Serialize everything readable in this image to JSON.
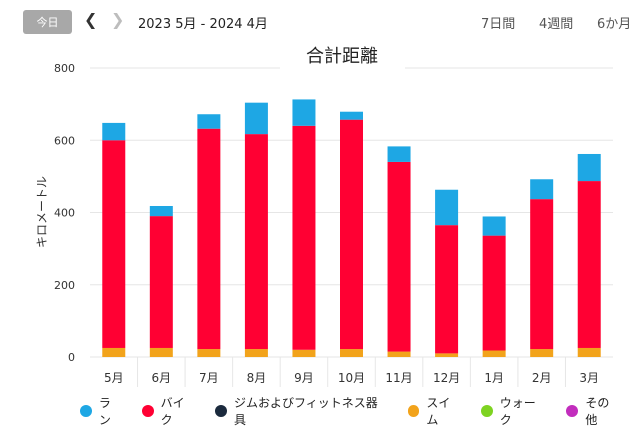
{
  "toolbar": {
    "today_label": "今日",
    "date_range": "2023 5月 - 2024 4月",
    "range_options": [
      "7日間",
      "4週間",
      "6か月"
    ]
  },
  "colors": {
    "run": "#1ea7e4",
    "bike": "#ff0033",
    "gym": "#1b2a3d",
    "swim": "#f2a31b",
    "walk": "#7ed321",
    "other": "#c22dbd",
    "grid": "#e6e6e6"
  },
  "chart_data": {
    "type": "bar",
    "stacked": true,
    "title": "合計距離",
    "ylabel": "キロメートル",
    "ylim": [
      0,
      800
    ],
    "yticks": [
      "0",
      "200",
      "400",
      "600",
      "800"
    ],
    "categories": [
      "5月",
      "6月",
      "7月",
      "8月",
      "9月",
      "10月",
      "11月",
      "12月",
      "1月",
      "2月",
      "3月"
    ],
    "series": [
      {
        "name": "スイム",
        "color": "#f2a31b",
        "values": [
          25,
          25,
          22,
          22,
          20,
          22,
          15,
          10,
          18,
          22,
          25
        ]
      },
      {
        "name": "バイク",
        "color": "#ff0033",
        "values": [
          575,
          365,
          610,
          595,
          620,
          635,
          525,
          355,
          318,
          415,
          462
        ]
      },
      {
        "name": "ラン",
        "color": "#1ea7e4",
        "values": [
          48,
          28,
          40,
          87,
          73,
          22,
          43,
          98,
          53,
          55,
          75
        ]
      }
    ],
    "legend": [
      {
        "name": "ラン",
        "color": "#1ea7e4"
      },
      {
        "name": "バイク",
        "color": "#ff0033"
      },
      {
        "name": "ジムおよびフィットネス器具",
        "color": "#1b2a3d"
      },
      {
        "name": "スイム",
        "color": "#f2a31b"
      },
      {
        "name": "ウォーク",
        "color": "#7ed321"
      },
      {
        "name": "その他",
        "color": "#c22dbd"
      }
    ],
    "legend_position": "bottom",
    "grid": true
  }
}
